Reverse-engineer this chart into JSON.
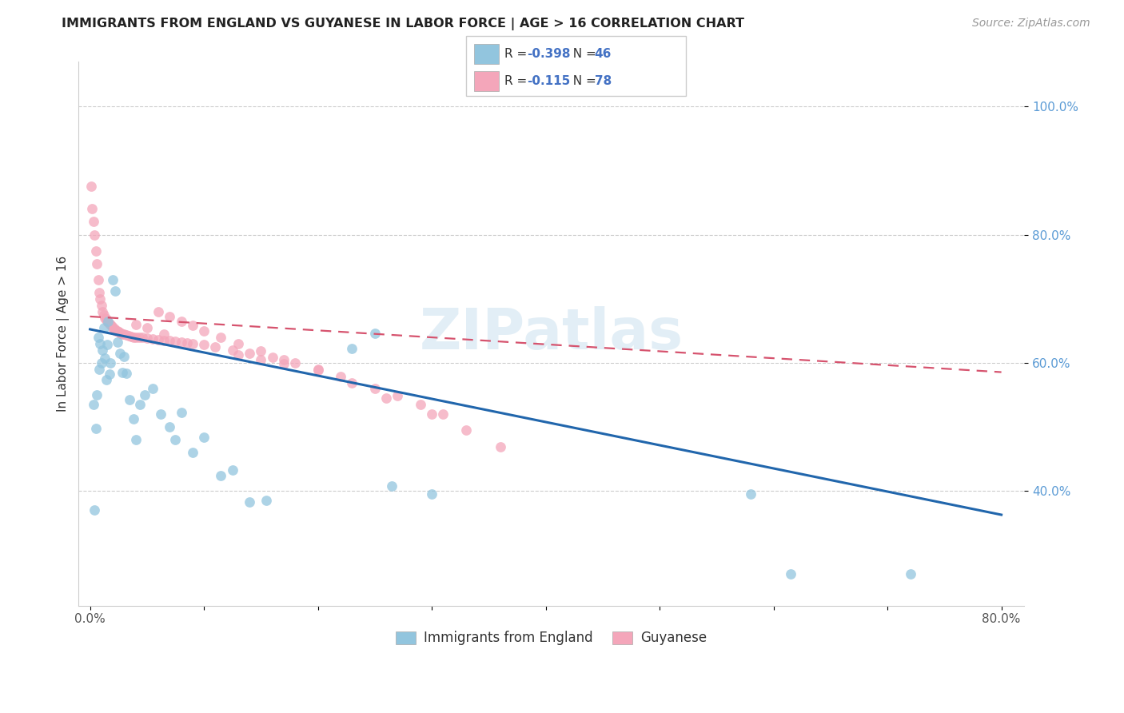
{
  "title": "IMMIGRANTS FROM ENGLAND VS GUYANESE IN LABOR FORCE | AGE > 16 CORRELATION CHART",
  "source_text": "Source: ZipAtlas.com",
  "ylabel": "In Labor Force | Age > 16",
  "xlim": [
    -0.01,
    0.82
  ],
  "ylim": [
    0.22,
    1.07
  ],
  "legend1_R": "-0.398",
  "legend1_N": "46",
  "legend2_R": "-0.115",
  "legend2_N": "78",
  "blue_color": "#92c5de",
  "pink_color": "#f4a6ba",
  "blue_line_color": "#2166ac",
  "pink_line_color": "#d6536e",
  "ytick_positions": [
    0.4,
    0.6,
    0.8,
    1.0
  ],
  "ytick_labels": [
    "40.0%",
    "60.0%",
    "80.0%",
    "100.0%"
  ],
  "xtick_positions": [
    0.0,
    0.1,
    0.2,
    0.3,
    0.4,
    0.5,
    0.6,
    0.7,
    0.8
  ],
  "xtick_labels": [
    "0.0%",
    "",
    "",
    "",
    "",
    "",
    "",
    "",
    "80.0%"
  ],
  "blue_trendline": [
    0.0,
    0.8,
    0.652,
    0.362
  ],
  "pink_trendline": [
    0.0,
    0.8,
    0.672,
    0.585
  ],
  "england_x": [
    0.003,
    0.004,
    0.005,
    0.006,
    0.007,
    0.008,
    0.009,
    0.01,
    0.011,
    0.012,
    0.013,
    0.014,
    0.015,
    0.016,
    0.017,
    0.018,
    0.02,
    0.022,
    0.024,
    0.026,
    0.028,
    0.03,
    0.032,
    0.035,
    0.038,
    0.04,
    0.044,
    0.048,
    0.055,
    0.062,
    0.07,
    0.075,
    0.08,
    0.09,
    0.1,
    0.115,
    0.125,
    0.14,
    0.155,
    0.23,
    0.25,
    0.265,
    0.3,
    0.58,
    0.615,
    0.72
  ],
  "england_y": [
    0.535,
    0.37,
    0.497,
    0.55,
    0.64,
    0.59,
    0.63,
    0.6,
    0.62,
    0.655,
    0.607,
    0.573,
    0.628,
    0.665,
    0.582,
    0.6,
    0.73,
    0.712,
    0.632,
    0.614,
    0.584,
    0.61,
    0.583,
    0.542,
    0.512,
    0.48,
    0.534,
    0.55,
    0.56,
    0.52,
    0.5,
    0.48,
    0.522,
    0.46,
    0.483,
    0.423,
    0.432,
    0.382,
    0.384,
    0.622,
    0.646,
    0.407,
    0.395,
    0.395,
    0.27,
    0.27
  ],
  "guyanese_x": [
    0.001,
    0.002,
    0.003,
    0.004,
    0.005,
    0.006,
    0.007,
    0.008,
    0.009,
    0.01,
    0.011,
    0.012,
    0.013,
    0.014,
    0.015,
    0.016,
    0.017,
    0.018,
    0.019,
    0.02,
    0.021,
    0.022,
    0.023,
    0.024,
    0.025,
    0.026,
    0.027,
    0.028,
    0.03,
    0.032,
    0.034,
    0.036,
    0.038,
    0.04,
    0.043,
    0.046,
    0.05,
    0.055,
    0.06,
    0.065,
    0.07,
    0.075,
    0.08,
    0.085,
    0.09,
    0.1,
    0.11,
    0.125,
    0.14,
    0.16,
    0.18,
    0.2,
    0.22,
    0.25,
    0.27,
    0.29,
    0.31,
    0.13,
    0.15,
    0.17,
    0.06,
    0.07,
    0.08,
    0.09,
    0.1,
    0.115,
    0.13,
    0.15,
    0.17,
    0.2,
    0.23,
    0.26,
    0.3,
    0.33,
    0.36,
    0.04,
    0.05,
    0.065
  ],
  "guyanese_y": [
    0.875,
    0.84,
    0.82,
    0.8,
    0.775,
    0.755,
    0.73,
    0.71,
    0.7,
    0.69,
    0.68,
    0.675,
    0.67,
    0.668,
    0.665,
    0.663,
    0.661,
    0.659,
    0.657,
    0.655,
    0.653,
    0.651,
    0.65,
    0.649,
    0.648,
    0.647,
    0.646,
    0.645,
    0.644,
    0.643,
    0.642,
    0.641,
    0.64,
    0.64,
    0.639,
    0.639,
    0.638,
    0.637,
    0.636,
    0.635,
    0.634,
    0.633,
    0.632,
    0.631,
    0.63,
    0.628,
    0.625,
    0.62,
    0.615,
    0.608,
    0.6,
    0.59,
    0.578,
    0.56,
    0.548,
    0.535,
    0.52,
    0.612,
    0.605,
    0.598,
    0.68,
    0.672,
    0.665,
    0.658,
    0.65,
    0.64,
    0.63,
    0.618,
    0.605,
    0.588,
    0.568,
    0.545,
    0.52,
    0.495,
    0.468,
    0.66,
    0.655,
    0.645
  ]
}
